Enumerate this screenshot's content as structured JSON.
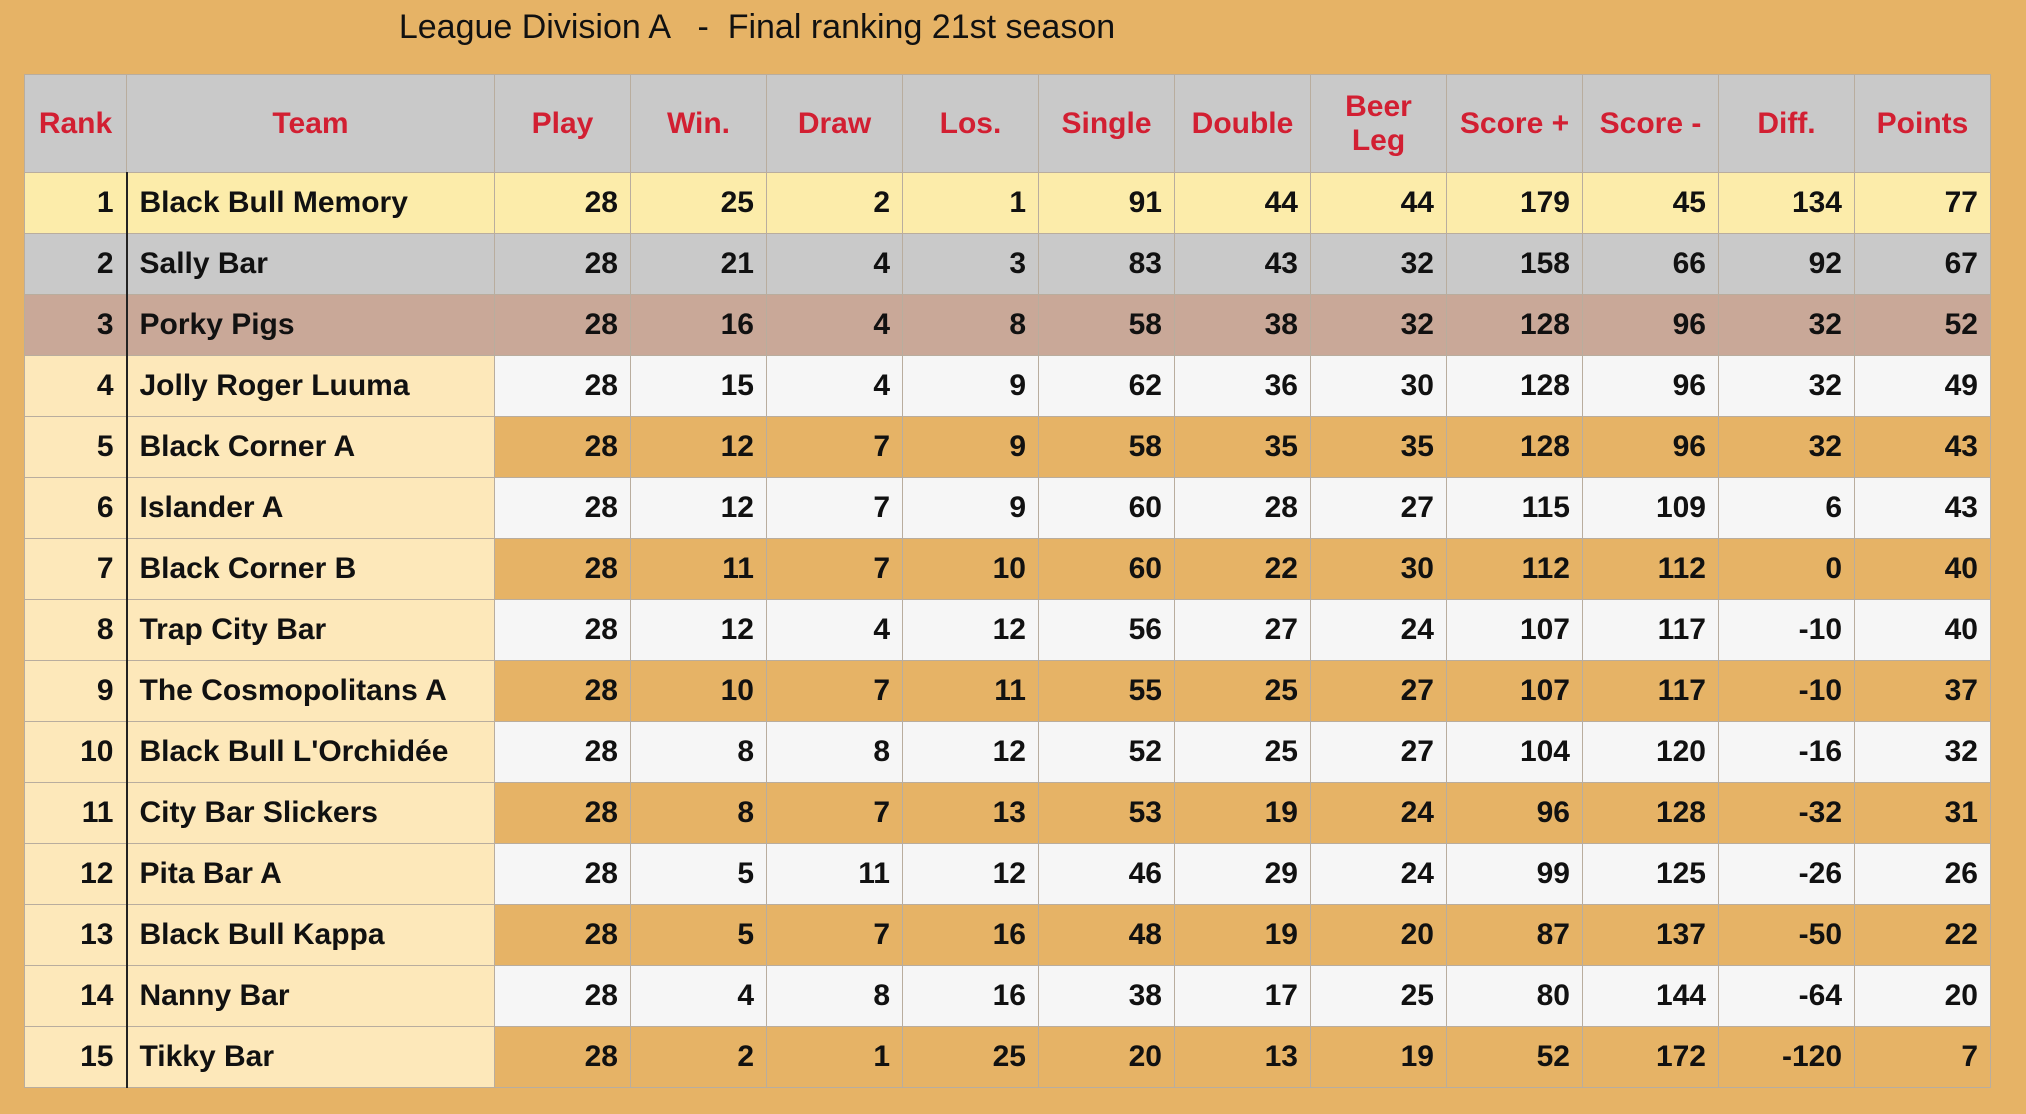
{
  "title": "League Division A   -  Final ranking 21st season",
  "colors": {
    "background": "#e6b366",
    "header_bg": "#c9c9c9",
    "header_text": "#d21f32",
    "gold": "#fcecaa",
    "silver": "#c9c9c9",
    "bronze": "#c9a898",
    "light_row": "#f6f6f6",
    "dark_row": "#e6b366",
    "rank_team_cell": "#fde8ba"
  },
  "table": {
    "headers": [
      "Rank",
      "Team",
      "Play",
      "Win.",
      "Draw",
      "Los.",
      "Single",
      "Double",
      "Beer Leg",
      "Score +",
      "Score -",
      "Diff.",
      "Points"
    ],
    "rows": [
      [
        "1",
        "Black Bull Memory",
        "28",
        "25",
        "2",
        "1",
        "91",
        "44",
        "44",
        "179",
        "45",
        "134",
        "77"
      ],
      [
        "2",
        "Sally Bar",
        "28",
        "21",
        "4",
        "3",
        "83",
        "43",
        "32",
        "158",
        "66",
        "92",
        "67"
      ],
      [
        "3",
        "Porky Pigs",
        "28",
        "16",
        "4",
        "8",
        "58",
        "38",
        "32",
        "128",
        "96",
        "32",
        "52"
      ],
      [
        "4",
        "Jolly Roger Luuma",
        "28",
        "15",
        "4",
        "9",
        "62",
        "36",
        "30",
        "128",
        "96",
        "32",
        "49"
      ],
      [
        "5",
        "Black Corner A",
        "28",
        "12",
        "7",
        "9",
        "58",
        "35",
        "35",
        "128",
        "96",
        "32",
        "43"
      ],
      [
        "6",
        "Islander A",
        "28",
        "12",
        "7",
        "9",
        "60",
        "28",
        "27",
        "115",
        "109",
        "6",
        "43"
      ],
      [
        "7",
        "Black Corner B",
        "28",
        "11",
        "7",
        "10",
        "60",
        "22",
        "30",
        "112",
        "112",
        "0",
        "40"
      ],
      [
        "8",
        "Trap City Bar",
        "28",
        "12",
        "4",
        "12",
        "56",
        "27",
        "24",
        "107",
        "117",
        "-10",
        "40"
      ],
      [
        "9",
        "The Cosmopolitans A",
        "28",
        "10",
        "7",
        "11",
        "55",
        "25",
        "27",
        "107",
        "117",
        "-10",
        "37"
      ],
      [
        "10",
        "Black Bull L'Orchidée",
        "28",
        "8",
        "8",
        "12",
        "52",
        "25",
        "27",
        "104",
        "120",
        "-16",
        "32"
      ],
      [
        "11",
        "City Bar Slickers",
        "28",
        "8",
        "7",
        "13",
        "53",
        "19",
        "24",
        "96",
        "128",
        "-32",
        "31"
      ],
      [
        "12",
        "Pita Bar A",
        "28",
        "5",
        "11",
        "12",
        "46",
        "29",
        "24",
        "99",
        "125",
        "-26",
        "26"
      ],
      [
        "13",
        "Black Bull Kappa",
        "28",
        "5",
        "7",
        "16",
        "48",
        "19",
        "20",
        "87",
        "137",
        "-50",
        "22"
      ],
      [
        "14",
        "Nanny Bar",
        "28",
        "4",
        "8",
        "16",
        "38",
        "17",
        "25",
        "80",
        "144",
        "-64",
        "20"
      ],
      [
        "15",
        "Tikky Bar",
        "28",
        "2",
        "1",
        "25",
        "20",
        "13",
        "19",
        "52",
        "172",
        "-120",
        "7"
      ]
    ]
  }
}
